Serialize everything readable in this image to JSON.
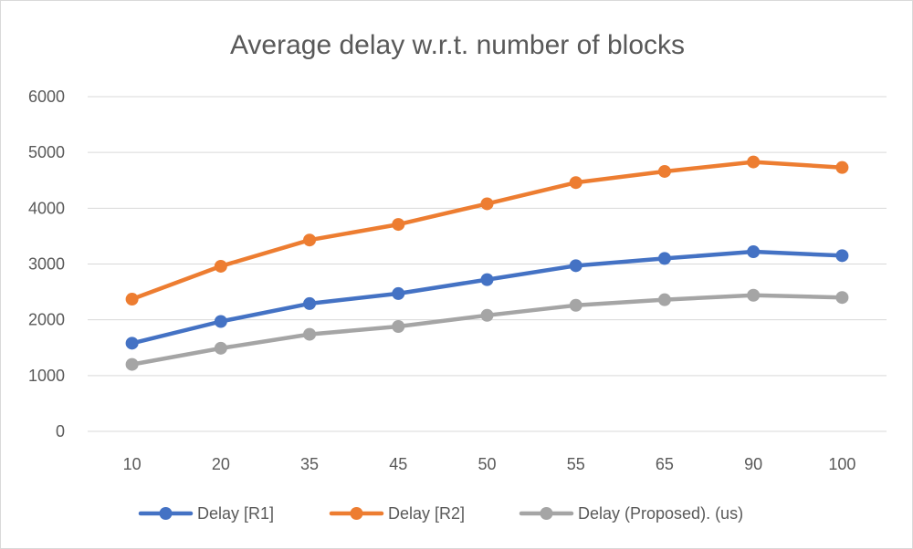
{
  "chart_data": {
    "type": "line",
    "title": "Average delay w.r.t. number of blocks",
    "xlabel": "",
    "ylabel": "",
    "categories": [
      "10",
      "20",
      "35",
      "45",
      "50",
      "55",
      "65",
      "90",
      "100"
    ],
    "ylim": [
      0,
      6000
    ],
    "yticks": [
      "0",
      "1000",
      "2000",
      "3000",
      "4000",
      "5000",
      "6000"
    ],
    "grid": true,
    "legend_position": "bottom",
    "series": [
      {
        "name": "Delay [R1]",
        "color": "#4472c4",
        "values": [
          1580,
          1970,
          2290,
          2470,
          2720,
          2970,
          3100,
          3220,
          3150
        ]
      },
      {
        "name": "Delay [R2]",
        "color": "#ed7d31",
        "values": [
          2370,
          2960,
          3430,
          3710,
          4080,
          4460,
          4660,
          4830,
          4730
        ]
      },
      {
        "name": "Delay (Proposed). (us)",
        "color": "#a5a5a5",
        "values": [
          1200,
          1490,
          1740,
          1880,
          2080,
          2260,
          2360,
          2440,
          2400
        ]
      }
    ]
  }
}
